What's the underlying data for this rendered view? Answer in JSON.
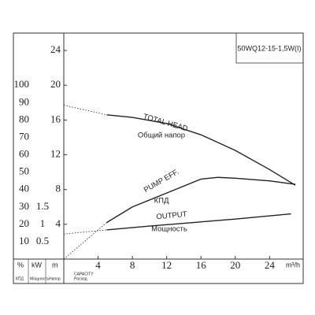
{
  "chart_data": {
    "type": "line",
    "title": "50WQ12-15-1,5W(I)",
    "x_unit": "m³/h",
    "x_label": "CAPACITY",
    "x_label_ru": "Расход",
    "y_unit": "m",
    "y_unit_ru": "Напор",
    "y2_unit": "%",
    "y2_unit_ru": "КПД",
    "y3_unit": "kW",
    "y3_unit_ru": "Мощность",
    "xlim": [
      0,
      27
    ],
    "xticks": [
      4,
      8,
      12,
      16,
      20,
      24
    ],
    "ylim": [
      0,
      26
    ],
    "yticks": [
      4,
      8,
      12,
      16,
      20,
      24
    ],
    "y2lim": [
      0,
      130
    ],
    "y2ticks": [
      10,
      20,
      30,
      40,
      50,
      60,
      70,
      80,
      90,
      100
    ],
    "y3lim": [
      0,
      6.5
    ],
    "y3ticks": [
      0.5,
      1,
      1.5
    ],
    "dashed_first_segment": true,
    "series": [
      {
        "name": "TOTAL HEAD",
        "name_ru": "Общий напор",
        "color": "#222222",
        "axis": "y",
        "x": [
          0,
          5,
          8,
          12,
          16,
          20,
          24,
          27
        ],
        "values": [
          17.7,
          16.6,
          16.3,
          15.6,
          14.3,
          12.5,
          10.3,
          8.5
        ]
      },
      {
        "name": "PUMP EFF.",
        "name_ru": "КПД",
        "color": "#222222",
        "axis": "y2",
        "x": [
          0,
          5,
          8,
          12,
          16,
          18,
          20,
          24,
          27
        ],
        "values": [
          0,
          21,
          30,
          38,
          46,
          47,
          46.5,
          45,
          43
        ]
      },
      {
        "name": "OUTPUT",
        "name_ru": "Мощность",
        "color": "#222222",
        "axis": "y3",
        "x": [
          0,
          5,
          10,
          15,
          20,
          26.5
        ],
        "values": [
          0.72,
          0.84,
          0.95,
          1.05,
          1.15,
          1.3
        ]
      }
    ]
  }
}
